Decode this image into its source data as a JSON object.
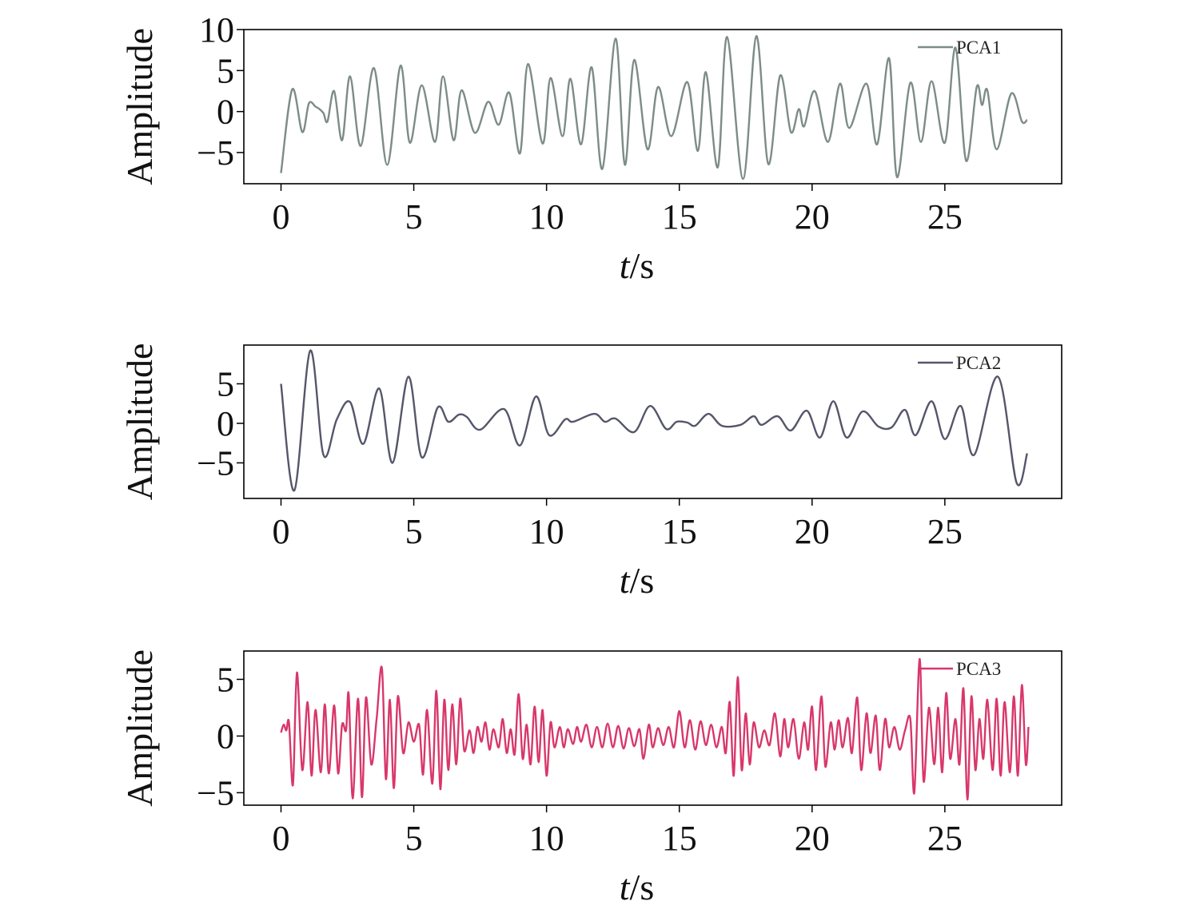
{
  "chart_data": [
    {
      "type": "line",
      "xlabel": "t/s",
      "ylabel": "Amplitude",
      "legend": "upper right",
      "xlim": [
        -1.4,
        29.4
      ],
      "xticks": [
        0,
        5,
        10,
        15,
        20,
        25
      ],
      "ylim": [
        -8.8,
        10
      ],
      "yticks": [
        {
          "value": -5,
          "label": "−5"
        },
        0,
        5,
        10
      ],
      "x": [
        0,
        0.42,
        0.8,
        1.05,
        1.3,
        1.45,
        1.6,
        1.75,
        2.0,
        2.3,
        2.6,
        3.0,
        3.5,
        4.0,
        4.5,
        4.85,
        5.3,
        5.8,
        6.1,
        6.5,
        6.8,
        7.3,
        7.8,
        8.2,
        8.6,
        9.0,
        9.3,
        9.85,
        10.15,
        10.6,
        10.9,
        11.3,
        11.7,
        12.1,
        12.6,
        12.95,
        13.3,
        13.8,
        14.2,
        14.7,
        15.3,
        15.7,
        16.0,
        16.45,
        16.8,
        17.4,
        17.9,
        18.35,
        18.8,
        19.2,
        19.5,
        19.7,
        20.1,
        20.6,
        21.05,
        21.4,
        22.05,
        22.45,
        22.9,
        23.2,
        23.7,
        24.1,
        24.5,
        25.0,
        25.4,
        25.8,
        26.2,
        26.4,
        26.6,
        26.95,
        27.5,
        27.9,
        28.1
      ],
      "series": [
        {
          "name": "PCA1",
          "color": "#7d8c89",
          "values": [
            -7.5,
            2.7,
            -2.5,
            1.0,
            0.6,
            0.3,
            -0.2,
            -1.2,
            2.5,
            -3.5,
            4.3,
            -4.2,
            5.3,
            -6.5,
            5.6,
            -3.8,
            3.2,
            -3.7,
            4.3,
            -3.5,
            2.6,
            -2.6,
            1.2,
            -1.6,
            2.3,
            -5.1,
            5.8,
            -3.9,
            4.1,
            -3.0,
            4.0,
            -4.0,
            5.4,
            -7.0,
            8.9,
            -6.5,
            6.3,
            -4.6,
            3.0,
            -3.0,
            3.6,
            -4.8,
            4.8,
            -6.8,
            9.1,
            -8.2,
            9.2,
            -6.4,
            4.4,
            -2.5,
            0.3,
            -1.8,
            2.5,
            -3.7,
            3.4,
            -2.0,
            3.4,
            -4.0,
            6.5,
            -8.0,
            3.5,
            -3.7,
            3.7,
            -3.8,
            7.8,
            -6.0,
            3.0,
            0.8,
            2.6,
            -4.6,
            2.2,
            -1.2,
            -1.0
          ]
        }
      ]
    },
    {
      "type": "line",
      "xlabel": "t/s",
      "ylabel": "Amplitude",
      "legend": "upper right",
      "xlim": [
        -1.4,
        29.4
      ],
      "xticks": [
        0,
        5,
        10,
        15,
        20,
        25
      ],
      "ylim": [
        -9.5,
        9.9
      ],
      "yticks": [
        {
          "value": -5,
          "label": "−5"
        },
        0,
        5
      ],
      "x": [
        0,
        0.5,
        1.1,
        1.6,
        2.1,
        2.6,
        3.1,
        3.7,
        4.2,
        4.8,
        5.3,
        5.9,
        6.3,
        6.7,
        7.0,
        7.5,
        8.4,
        9.0,
        9.6,
        10.1,
        10.7,
        11.0,
        11.8,
        12.2,
        12.6,
        13.3,
        13.9,
        14.5,
        14.9,
        15.3,
        15.6,
        16.1,
        16.6,
        17.3,
        17.8,
        18.1,
        18.7,
        19.2,
        19.8,
        20.3,
        20.8,
        21.3,
        21.9,
        22.5,
        23.0,
        23.5,
        23.9,
        24.5,
        25.0,
        25.6,
        26.1,
        27.0,
        27.7,
        28.1
      ],
      "series": [
        {
          "name": "PCA2",
          "color": "#55566a",
          "values": [
            5.0,
            -8.5,
            9.2,
            -4.0,
            0.5,
            2.7,
            -2.6,
            4.4,
            -5.0,
            5.9,
            -4.3,
            2.0,
            0.2,
            1.1,
            0.8,
            -0.8,
            1.8,
            -2.8,
            3.4,
            -1.5,
            0.5,
            0.2,
            1.2,
            0.2,
            0.6,
            -1.1,
            2.2,
            -0.7,
            0.2,
            0.1,
            -0.3,
            1.2,
            -0.3,
            -0.2,
            0.9,
            -0.2,
            0.9,
            -0.9,
            1.6,
            -1.8,
            2.8,
            -1.8,
            1.5,
            -0.4,
            -0.5,
            1.7,
            -1.5,
            2.8,
            -2.0,
            2.2,
            -4.0,
            5.9,
            -7.5,
            -3.8
          ]
        }
      ]
    },
    {
      "type": "line",
      "xlabel": "t/s",
      "ylabel": "Amplitude",
      "legend": "upper right",
      "xlim": [
        -1.4,
        29.4
      ],
      "xticks": [
        0,
        5,
        10,
        15,
        20,
        25
      ],
      "ylim": [
        -6.1,
        7.5
      ],
      "yticks": [
        {
          "value": -5,
          "label": "−5"
        },
        0,
        5
      ],
      "x": [
        0,
        0.1,
        0.2,
        0.3,
        0.45,
        0.6,
        0.8,
        1.0,
        1.15,
        1.3,
        1.5,
        1.65,
        1.8,
        2.0,
        2.15,
        2.3,
        2.45,
        2.55,
        2.7,
        2.9,
        3.05,
        3.2,
        3.4,
        3.6,
        3.8,
        3.95,
        4.1,
        4.25,
        4.4,
        4.6,
        4.8,
        5.0,
        5.2,
        5.35,
        5.5,
        5.7,
        5.85,
        6.0,
        6.15,
        6.3,
        6.45,
        6.6,
        6.75,
        6.9,
        7.1,
        7.25,
        7.4,
        7.55,
        7.7,
        7.85,
        8.0,
        8.2,
        8.35,
        8.5,
        8.65,
        8.8,
        8.95,
        9.1,
        9.25,
        9.4,
        9.55,
        9.7,
        9.85,
        10.0,
        10.15,
        10.3,
        10.5,
        10.65,
        10.8,
        11.0,
        11.15,
        11.3,
        11.5,
        11.7,
        11.9,
        12.1,
        12.3,
        12.5,
        12.7,
        12.9,
        13.1,
        13.3,
        13.5,
        13.65,
        13.85,
        14.0,
        14.2,
        14.4,
        14.6,
        14.8,
        15.0,
        15.2,
        15.4,
        15.6,
        15.8,
        16.0,
        16.2,
        16.4,
        16.6,
        16.75,
        16.9,
        17.05,
        17.2,
        17.35,
        17.5,
        17.65,
        17.8,
        18.0,
        18.2,
        18.4,
        18.6,
        18.8,
        18.95,
        19.1,
        19.3,
        19.5,
        19.7,
        19.85,
        20.0,
        20.15,
        20.35,
        20.5,
        20.7,
        20.85,
        21.0,
        21.15,
        21.35,
        21.5,
        21.7,
        21.85,
        22.05,
        22.2,
        22.4,
        22.55,
        22.75,
        22.9,
        23.1,
        23.3,
        23.5,
        23.7,
        23.85,
        24.05,
        24.2,
        24.4,
        24.6,
        24.75,
        24.9,
        25.05,
        25.2,
        25.4,
        25.55,
        25.7,
        25.85,
        26.0,
        26.15,
        26.3,
        26.45,
        26.6,
        26.8,
        26.95,
        27.1,
        27.25,
        27.45,
        27.6,
        27.75,
        27.9,
        28.05,
        28.15
      ],
      "series": [
        {
          "name": "PCA3",
          "color": "#d8376b",
          "values": [
            0.3,
            1.0,
            0.5,
            1.2,
            -4.3,
            5.6,
            -3.0,
            3.0,
            -3.5,
            2.3,
            -3.2,
            2.8,
            -3.3,
            2.7,
            -3.3,
            1.0,
            0.5,
            3.7,
            -5.5,
            3.3,
            -5.4,
            3.4,
            -2.5,
            1.5,
            6.0,
            -3.8,
            3.2,
            -4.6,
            3.5,
            -1.5,
            1.2,
            -0.5,
            1.0,
            -3.4,
            2.3,
            -4.2,
            4.0,
            -4.7,
            3.2,
            -3.0,
            2.8,
            -2.5,
            3.3,
            -1.3,
            0.5,
            -1.5,
            0.8,
            -0.5,
            1.2,
            -1.2,
            0.6,
            -1.0,
            1.5,
            -1.5,
            0.6,
            -1.6,
            3.7,
            -2.0,
            1.0,
            -2.5,
            2.6,
            -2.3,
            2.3,
            -3.5,
            1.2,
            -1.0,
            0.8,
            -1.0,
            0.6,
            -0.7,
            0.8,
            -0.5,
            1.0,
            -1.0,
            0.8,
            -1.0,
            1.1,
            -1.0,
            0.9,
            -1.1,
            0.7,
            -0.9,
            0.6,
            -2.0,
            1.0,
            -1.0,
            0.7,
            -0.8,
            0.8,
            -1.0,
            2.2,
            -1.0,
            1.4,
            -1.2,
            1.3,
            -0.8,
            1.0,
            -1.0,
            0.8,
            -1.5,
            3.0,
            -3.5,
            5.2,
            -3.0,
            2.0,
            -2.5,
            1.2,
            -1.0,
            0.5,
            -0.8,
            2.0,
            -1.8,
            1.5,
            -1.0,
            1.5,
            -2.0,
            1.2,
            -1.2,
            2.6,
            -3.0,
            3.5,
            -2.7,
            1.2,
            -1.2,
            1.4,
            -1.0,
            1.6,
            -1.5,
            3.4,
            -3.0,
            2.0,
            -1.5,
            1.8,
            -3.0,
            1.5,
            -1.0,
            0.8,
            -1.2,
            0.5,
            1.5,
            -5.0,
            6.8,
            -4.0,
            2.5,
            -2.5,
            2.5,
            -3.2,
            3.8,
            -2.0,
            1.5,
            -2.5,
            4.2,
            -5.6,
            3.5,
            -3.0,
            1.5,
            -2.0,
            3.2,
            -3.0,
            3.3,
            -3.5,
            3.0,
            -3.2,
            3.5,
            -3.5,
            4.5,
            -2.5,
            0.8
          ]
        }
      ]
    }
  ]
}
